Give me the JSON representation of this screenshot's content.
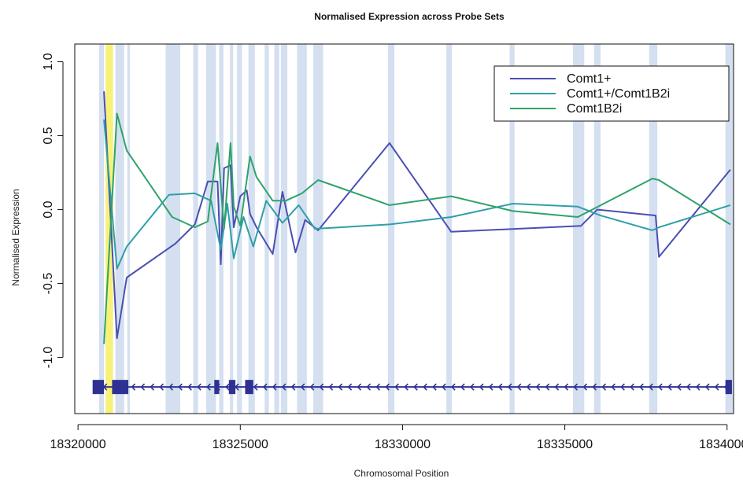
{
  "chart_data": {
    "type": "line",
    "title": "Normalised Expression across Probe Sets",
    "xlabel": "Chromosomal Position",
    "ylabel": "Normalised Expression",
    "xlim": [
      18319900,
      18340200
    ],
    "ylim": [
      -1.38,
      1.12
    ],
    "x_ticks": [
      18320000,
      18325000,
      18330000,
      18335000,
      18340000
    ],
    "x_tick_labels": [
      "18320000",
      "18325000",
      "18330000",
      "18335000",
      "18340000"
    ],
    "y_ticks": [
      -1.0,
      -0.5,
      0.0,
      0.5,
      1.0
    ],
    "y_tick_labels": [
      "-1.0",
      "-0.5",
      "0.0",
      "0.5",
      "1.0"
    ],
    "grid": false,
    "legend_position": "top-right",
    "colors": {
      "probe_band": "#d4dff0",
      "highlight_band": "#f7f17a",
      "gene_model": "#2e3192"
    },
    "series": [
      {
        "name": "Comt1+",
        "color": "#4a4fb3",
        "x": [
          18320800,
          18321200,
          18321500,
          18323000,
          18323600,
          18324000,
          18324300,
          18324400,
          18324500,
          18324700,
          18324800,
          18325000,
          18325200,
          18325300,
          18325500,
          18326000,
          18326300,
          18326700,
          18327000,
          18327400,
          18329600,
          18331500,
          18335500,
          18336000,
          18337800,
          18337900,
          18340100
        ],
        "y": [
          0.8,
          -0.87,
          -0.46,
          -0.23,
          -0.1,
          0.19,
          0.19,
          -0.37,
          0.28,
          0.3,
          -0.12,
          0.09,
          0.13,
          -0.03,
          -0.12,
          -0.3,
          0.12,
          -0.29,
          -0.07,
          -0.14,
          0.45,
          -0.15,
          -0.11,
          0.0,
          -0.04,
          -0.32,
          0.27
        ]
      },
      {
        "name": "Comt1+/Comt1B2i",
        "color": "#2f9fa8",
        "x": [
          18320800,
          18321200,
          18321500,
          18322800,
          18323600,
          18324100,
          18324400,
          18324600,
          18324800,
          18325100,
          18325400,
          18325800,
          18326300,
          18326800,
          18327300,
          18329600,
          18331500,
          18333400,
          18335400,
          18336100,
          18337700,
          18337900,
          18340100
        ],
        "y": [
          0.61,
          -0.4,
          -0.25,
          0.1,
          0.11,
          0.06,
          -0.27,
          0.04,
          -0.33,
          -0.05,
          -0.25,
          0.06,
          -0.09,
          0.03,
          -0.13,
          -0.1,
          -0.05,
          0.04,
          0.02,
          -0.04,
          -0.14,
          -0.12,
          0.03
        ]
      },
      {
        "name": "Comt1B2i",
        "color": "#2ea36a",
        "x": [
          18320800,
          18321200,
          18321500,
          18322900,
          18323600,
          18324000,
          18324300,
          18324500,
          18324700,
          18324800,
          18325000,
          18325300,
          18325500,
          18326000,
          18326400,
          18326900,
          18327400,
          18329600,
          18331500,
          18333400,
          18335400,
          18337700,
          18337900,
          18340100
        ],
        "y": [
          -0.91,
          0.65,
          0.4,
          -0.05,
          -0.12,
          -0.08,
          0.45,
          -0.13,
          0.45,
          0.02,
          -0.11,
          0.36,
          0.22,
          0.06,
          0.06,
          0.11,
          0.2,
          0.03,
          0.09,
          -0.01,
          -0.05,
          0.21,
          0.2,
          -0.1
        ]
      }
    ],
    "probe_bands": [
      [
        18320650,
        18320800
      ],
      [
        18321150,
        18321420
      ],
      [
        18321520,
        18321600
      ],
      [
        18322700,
        18323150
      ],
      [
        18323550,
        18323700
      ],
      [
        18323950,
        18324250
      ],
      [
        18324350,
        18324480
      ],
      [
        18324680,
        18324780
      ],
      [
        18324900,
        18325050
      ],
      [
        18325250,
        18325450
      ],
      [
        18325750,
        18325880
      ],
      [
        18326050,
        18326200
      ],
      [
        18326250,
        18326450
      ],
      [
        18326750,
        18327050
      ],
      [
        18327250,
        18327550
      ],
      [
        18329550,
        18329750
      ],
      [
        18331350,
        18331520
      ],
      [
        18333300,
        18333450
      ],
      [
        18335250,
        18335600
      ],
      [
        18335900,
        18336100
      ],
      [
        18337600,
        18337850
      ],
      [
        18339950,
        18340350
      ]
    ],
    "highlight_band": [
      18320850,
      18321080
    ],
    "gene_model": {
      "y": -1.2,
      "line_range": [
        18320500,
        18340150
      ],
      "exons": [
        [
          18320450,
          18320800
        ],
        [
          18321050,
          18321550
        ],
        [
          18324200,
          18324350
        ],
        [
          18324650,
          18324850
        ],
        [
          18325150,
          18325400
        ],
        [
          18339950,
          18340150
        ]
      ],
      "arrow_spacing": 290
    }
  }
}
